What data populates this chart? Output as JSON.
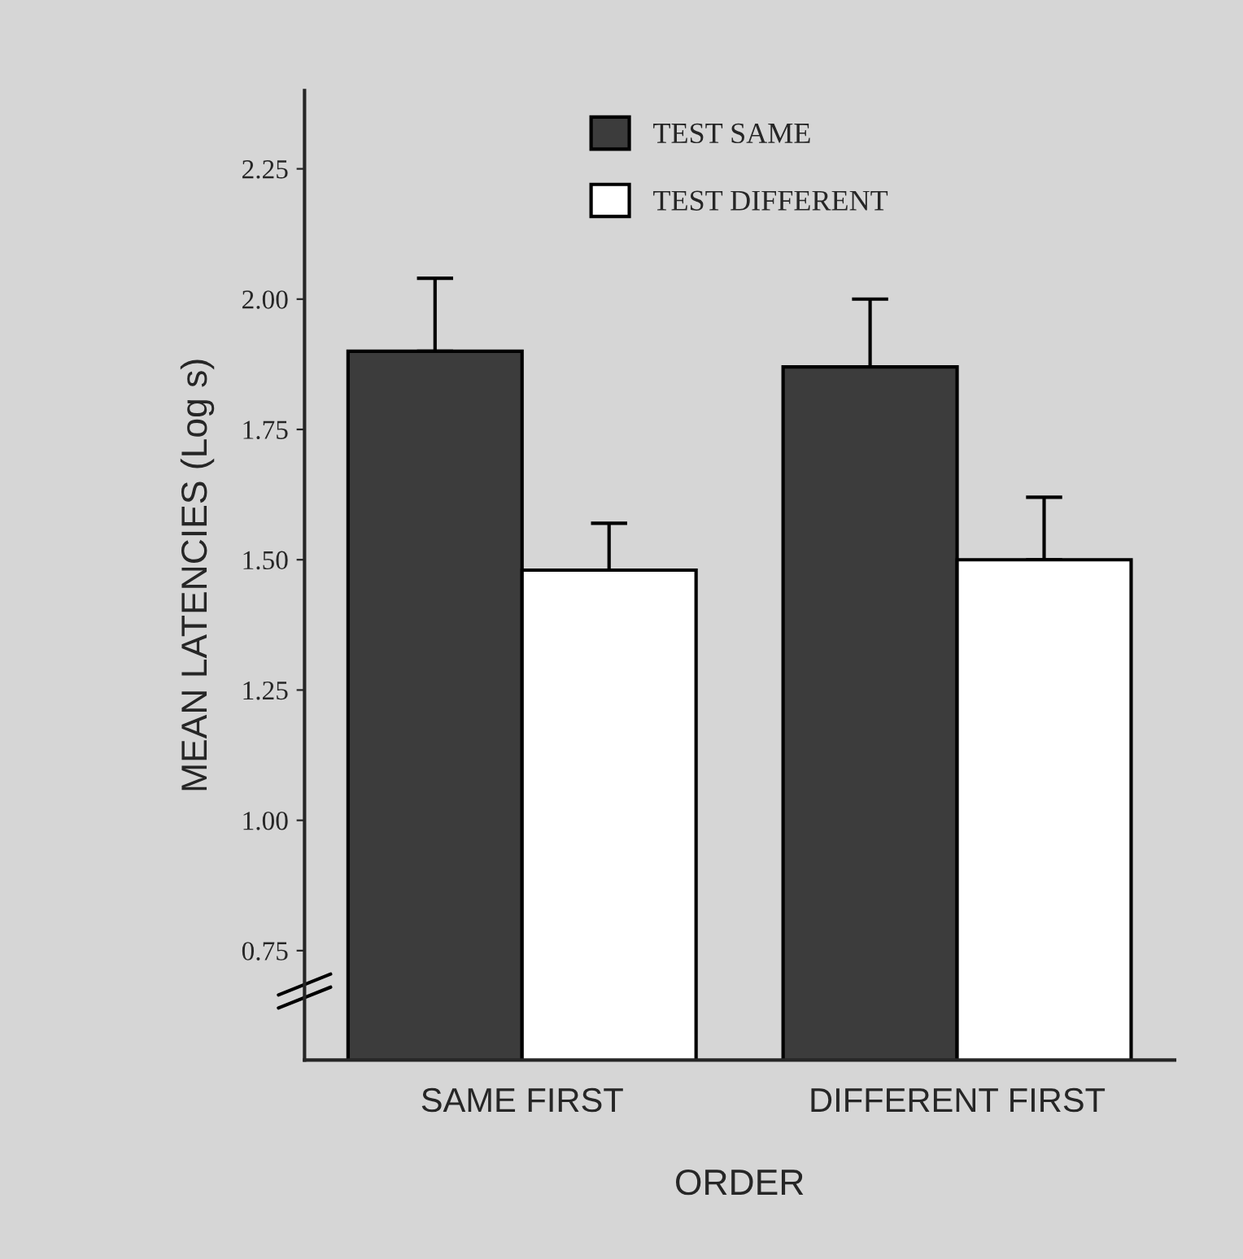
{
  "chart_data": {
    "type": "bar",
    "xlabel": "ORDER",
    "ylabel": "MEAN LATENCIES (Log s)",
    "categories": [
      "SAME FIRST",
      "DIFFERENT FIRST"
    ],
    "series": [
      {
        "name": "TEST SAME",
        "color": "#3c3c3c",
        "values": [
          1.9,
          1.87
        ],
        "errors": [
          [
            1.9,
            2.04
          ],
          [
            1.87,
            2.0
          ]
        ]
      },
      {
        "name": "TEST DIFFERENT",
        "color": "#ffffff",
        "values": [
          1.48,
          1.5
        ],
        "errors": [
          [
            1.48,
            1.57
          ],
          [
            1.5,
            1.62
          ]
        ]
      }
    ],
    "ylim": [
      0.54,
      2.4
    ],
    "yticks": [
      {
        "value": 0.75,
        "label": "0.75"
      },
      {
        "value": 1.0,
        "label": "1.00"
      },
      {
        "value": 1.25,
        "label": "1.25"
      },
      {
        "value": 1.5,
        "label": "1.50"
      },
      {
        "value": 1.75,
        "label": "1.75"
      },
      {
        "value": 2.0,
        "label": "2.00"
      },
      {
        "value": 2.25,
        "label": "2.25"
      }
    ],
    "legend": "top",
    "grid": false
  }
}
